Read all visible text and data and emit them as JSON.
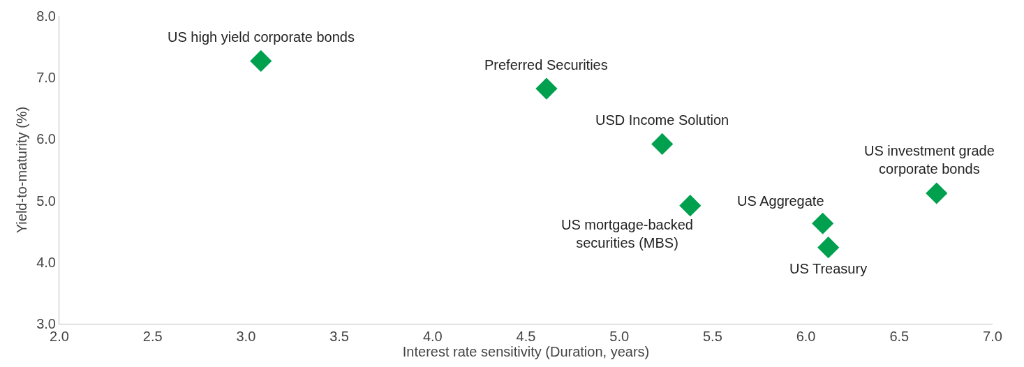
{
  "chart_data": {
    "type": "scatter",
    "xlabel": "Interest rate sensitivity (Duration, years)",
    "ylabel": "Yield-to-maturity (%)",
    "series": [
      {
        "color": "#00a04f",
        "x": [
          3.08,
          4.61,
          5.23,
          5.38,
          6.09,
          6.12,
          6.7
        ],
        "values": [
          7.27,
          6.82,
          5.92,
          4.92,
          4.63,
          4.24,
          5.12
        ]
      }
    ],
    "annotations": [
      {
        "text": "US high yield corporate bonds",
        "x": 3.08,
        "y": 7.27
      },
      {
        "text": "Preferred Securities",
        "x": 4.61,
        "y": 6.82
      },
      {
        "text": "USD Income Solution",
        "x": 5.23,
        "y": 5.92
      },
      {
        "text": "US mortgage-backed\nsecurities (MBS)",
        "x": 5.38,
        "y": 4.92
      },
      {
        "text": "US Aggregate",
        "x": 6.09,
        "y": 4.63
      },
      {
        "text": "US Treasury",
        "x": 6.12,
        "y": 4.24
      },
      {
        "text": "US investment grade\ncorporate bonds",
        "x": 6.7,
        "y": 5.12
      }
    ],
    "xlim": [
      2,
      7
    ],
    "xticks": [
      {
        "value": 2,
        "label": "2.0"
      },
      2.5,
      {
        "value": 3,
        "label": "3.0"
      },
      3.5,
      {
        "value": 4,
        "label": "4.0"
      },
      4.5,
      {
        "value": 5,
        "label": "5.0"
      },
      5.5,
      {
        "value": 6,
        "label": "6.0"
      },
      6.5,
      {
        "value": 7,
        "label": "7.0"
      }
    ],
    "ylim": [
      3,
      8
    ],
    "yticks": [
      {
        "value": 3,
        "label": "3.0"
      },
      {
        "value": 4,
        "label": "4.0"
      },
      {
        "value": 5,
        "label": "5.0"
      },
      {
        "value": 6,
        "label": "6.0"
      },
      {
        "value": 7,
        "label": "7.0"
      },
      {
        "value": 8,
        "label": "8.0"
      }
    ],
    "marker": "diamond"
  }
}
